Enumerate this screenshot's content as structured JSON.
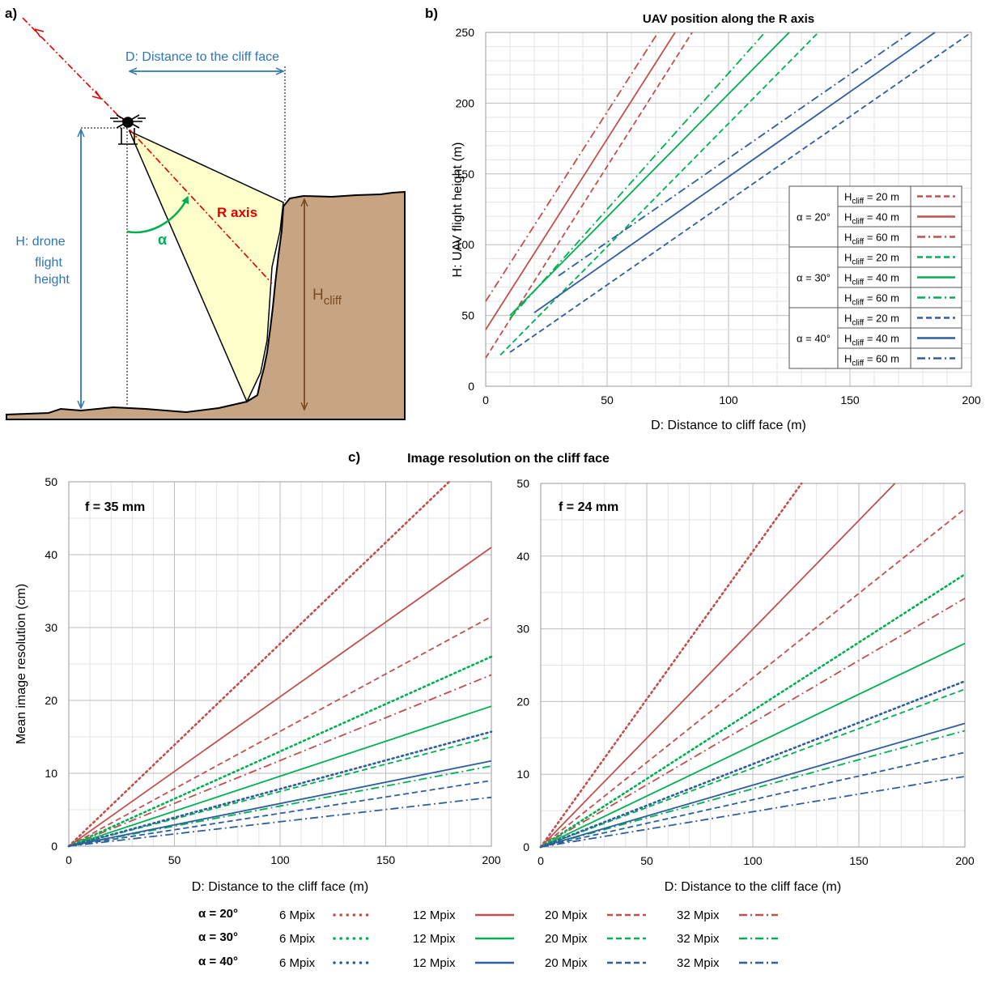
{
  "panel_a": {
    "label": "a)",
    "distance_label": "D: Distance to the cliff face",
    "height_label_lines": [
      "H: drone",
      "flight",
      "height"
    ],
    "r_axis_label": "R axis",
    "alpha_label": "α",
    "hcliff_main": "H",
    "hcliff_sub": "cliff",
    "colors": {
      "blue": "#2e75b6",
      "red": "#e00000",
      "green": "#00b050",
      "brown": "#7a4a21",
      "ground": "#c7a582",
      "fov": "#ffffcc"
    }
  },
  "panel_b": {
    "label": "b)",
    "legend_h_main": "H",
    "legend_h_sub": "cliff",
    "legend_alpha_col": [
      "α = 20°",
      "α = 30°",
      "α = 40°"
    ],
    "legend_rows": [
      " = 20 m",
      " = 40 m",
      " = 60 m",
      " = 20 m",
      " = 40 m",
      " = 60 m",
      " = 20 m",
      " = 40 m",
      " = 60 m"
    ]
  },
  "panel_c": {
    "label": "c)",
    "title": "Image resolution on the cliff face",
    "left_annotation": "f = 35 mm",
    "right_annotation": "f = 24 mm"
  },
  "bottom_legend": {
    "alphas": [
      "α = 20°",
      "α = 30°",
      "α = 40°"
    ],
    "sensors": [
      "6 Mpix",
      "12 Mpix",
      "20 Mpix",
      "32 Mpix"
    ]
  },
  "chart_data": [
    {
      "type": "line",
      "title": "UAV position along the R axis",
      "xlabel": "D: Distance to cliff face (m)",
      "ylabel": "H: UAV flight height (m)",
      "xlim": [
        0,
        200
      ],
      "ylim": [
        0,
        250
      ],
      "xticks": [
        0,
        50,
        100,
        150,
        200
      ],
      "yticks": [
        0,
        50,
        100,
        150,
        200,
        250
      ],
      "grid": true,
      "legend": "center-right",
      "series": [
        {
          "name": "α = 20°, Hcliff = 20 m",
          "color": "#c0504d",
          "dash": "dashed",
          "x": [
            0,
            85
          ],
          "y": [
            20,
            250
          ]
        },
        {
          "name": "α = 20°, Hcliff = 40 m",
          "color": "#c0504d",
          "dash": "solid",
          "x": [
            0,
            78
          ],
          "y": [
            40,
            250
          ]
        },
        {
          "name": "α = 20°, Hcliff = 60 m",
          "color": "#c0504d",
          "dash": "dashdot",
          "x": [
            0,
            71
          ],
          "y": [
            60,
            250
          ]
        },
        {
          "name": "α = 30°, Hcliff = 20 m",
          "color": "#00b050",
          "dash": "dashed",
          "x": [
            6,
            137
          ],
          "y": [
            22,
            250
          ]
        },
        {
          "name": "α = 30°, Hcliff = 40 m",
          "color": "#00b050",
          "dash": "solid",
          "x": [
            10,
            125
          ],
          "y": [
            50,
            250
          ]
        },
        {
          "name": "α = 30°, Hcliff = 60 m",
          "color": "#00b050",
          "dash": "dashdot",
          "x": [
            10,
            115
          ],
          "y": [
            48,
            250
          ]
        },
        {
          "name": "α = 40°, Hcliff = 20 m",
          "color": "#2e5e9e",
          "dash": "dashed",
          "x": [
            10,
            200
          ],
          "y": [
            24,
            250
          ]
        },
        {
          "name": "α = 40°, Hcliff = 40 m",
          "color": "#2e5e9e",
          "dash": "solid",
          "x": [
            20,
            185
          ],
          "y": [
            52,
            250
          ]
        },
        {
          "name": "α = 40°, Hcliff = 60 m",
          "color": "#2e5e9e",
          "dash": "dashdot",
          "x": [
            30,
            175
          ],
          "y": [
            78,
            250
          ]
        }
      ]
    },
    {
      "type": "line",
      "title": "f = 35 mm",
      "xlabel": "D: Distance to the cliff face (m)",
      "ylabel": "Mean image resolution (cm)",
      "xlim": [
        0,
        200
      ],
      "ylim": [
        0,
        50
      ],
      "xticks": [
        0,
        50,
        100,
        150,
        200
      ],
      "yticks": [
        0,
        10,
        20,
        30,
        40,
        50
      ],
      "grid": true,
      "series": [
        {
          "name": "α = 20°, 6 Mpix",
          "color": "#c0504d",
          "dash": "dotted",
          "x": [
            0,
            180
          ],
          "y": [
            0,
            50
          ]
        },
        {
          "name": "α = 20°, 12 Mpix",
          "color": "#c0504d",
          "dash": "solid",
          "x": [
            0,
            200
          ],
          "y": [
            0,
            41
          ]
        },
        {
          "name": "α = 20°, 20 Mpix",
          "color": "#c0504d",
          "dash": "dashed",
          "x": [
            0,
            200
          ],
          "y": [
            0,
            31.5
          ]
        },
        {
          "name": "α = 20°, 32 Mpix",
          "color": "#c0504d",
          "dash": "dashdot",
          "x": [
            0,
            200
          ],
          "y": [
            0,
            23.5
          ]
        },
        {
          "name": "α = 30°, 6 Mpix",
          "color": "#00b050",
          "dash": "dotted",
          "x": [
            0,
            200
          ],
          "y": [
            0,
            26
          ]
        },
        {
          "name": "α = 30°, 12 Mpix",
          "color": "#00b050",
          "dash": "solid",
          "x": [
            0,
            200
          ],
          "y": [
            0,
            19.2
          ]
        },
        {
          "name": "α = 30°, 20 Mpix",
          "color": "#00b050",
          "dash": "dashed",
          "x": [
            0,
            200
          ],
          "y": [
            0,
            15
          ]
        },
        {
          "name": "α = 30°, 32 Mpix",
          "color": "#00b050",
          "dash": "dashdot",
          "x": [
            0,
            200
          ],
          "y": [
            0,
            11
          ]
        },
        {
          "name": "α = 40°, 6 Mpix",
          "color": "#2e5e9e",
          "dash": "dotted",
          "x": [
            0,
            200
          ],
          "y": [
            0,
            15.7
          ]
        },
        {
          "name": "α = 40°, 12 Mpix",
          "color": "#2e5e9e",
          "dash": "solid",
          "x": [
            0,
            200
          ],
          "y": [
            0,
            11.7
          ]
        },
        {
          "name": "α = 40°, 20 Mpix",
          "color": "#2e5e9e",
          "dash": "dashed",
          "x": [
            0,
            200
          ],
          "y": [
            0,
            9
          ]
        },
        {
          "name": "α = 40°, 32 Mpix",
          "color": "#2e5e9e",
          "dash": "dashdot",
          "x": [
            0,
            200
          ],
          "y": [
            0,
            6.7
          ]
        }
      ]
    },
    {
      "type": "line",
      "title": "f = 24 mm",
      "xlabel": "D: Distance to the cliff face (m)",
      "ylabel": "",
      "xlim": [
        0,
        200
      ],
      "ylim": [
        0,
        50
      ],
      "xticks": [
        0,
        50,
        100,
        150,
        200
      ],
      "yticks": [
        0,
        10,
        20,
        30,
        40,
        50
      ],
      "grid": true,
      "series": [
        {
          "name": "α = 20°, 6 Mpix",
          "color": "#c0504d",
          "dash": "dotted",
          "x": [
            0,
            123
          ],
          "y": [
            0,
            50
          ]
        },
        {
          "name": "α = 20°, 12 Mpix",
          "color": "#c0504d",
          "dash": "solid",
          "x": [
            0,
            167
          ],
          "y": [
            0,
            50
          ]
        },
        {
          "name": "α = 20°, 20 Mpix",
          "color": "#c0504d",
          "dash": "dashed",
          "x": [
            0,
            200
          ],
          "y": [
            0,
            46.5
          ]
        },
        {
          "name": "α = 20°, 32 Mpix",
          "color": "#c0504d",
          "dash": "dashdot",
          "x": [
            0,
            200
          ],
          "y": [
            0,
            34.2
          ]
        },
        {
          "name": "α = 30°, 6 Mpix",
          "color": "#00b050",
          "dash": "dotted",
          "x": [
            0,
            200
          ],
          "y": [
            0,
            37.5
          ]
        },
        {
          "name": "α = 30°, 12 Mpix",
          "color": "#00b050",
          "dash": "solid",
          "x": [
            0,
            200
          ],
          "y": [
            0,
            28
          ]
        },
        {
          "name": "α = 30°, 20 Mpix",
          "color": "#00b050",
          "dash": "dashed",
          "x": [
            0,
            200
          ],
          "y": [
            0,
            21.7
          ]
        },
        {
          "name": "α = 30°, 32 Mpix",
          "color": "#00b050",
          "dash": "dashdot",
          "x": [
            0,
            200
          ],
          "y": [
            0,
            16
          ]
        },
        {
          "name": "α = 40°, 6 Mpix",
          "color": "#2e5e9e",
          "dash": "dotted",
          "x": [
            0,
            200
          ],
          "y": [
            0,
            22.8
          ]
        },
        {
          "name": "α = 40°, 12 Mpix",
          "color": "#2e5e9e",
          "dash": "solid",
          "x": [
            0,
            200
          ],
          "y": [
            0,
            17
          ]
        },
        {
          "name": "α = 40°, 20 Mpix",
          "color": "#2e5e9e",
          "dash": "dashed",
          "x": [
            0,
            200
          ],
          "y": [
            0,
            13
          ]
        },
        {
          "name": "α = 40°, 32 Mpix",
          "color": "#2e5e9e",
          "dash": "dashdot",
          "x": [
            0,
            200
          ],
          "y": [
            0,
            9.7
          ]
        }
      ]
    }
  ]
}
